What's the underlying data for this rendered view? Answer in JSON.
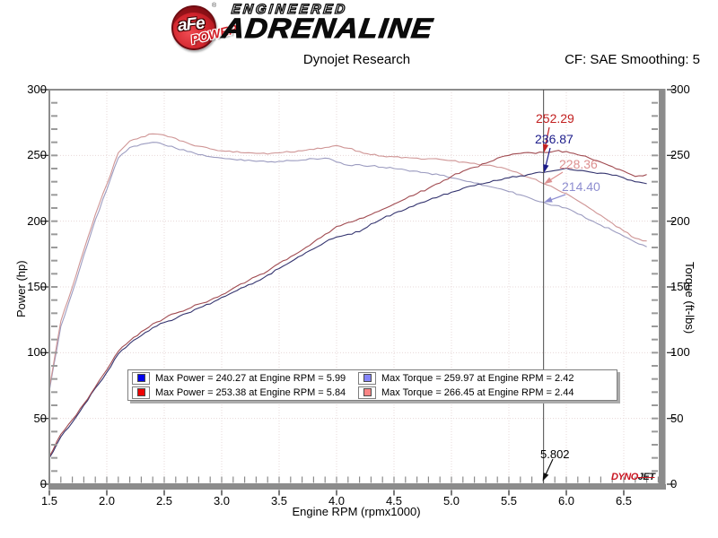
{
  "header": {
    "brand_circle": "aFe",
    "brand_reg": "®",
    "brand_power": "POWER",
    "brand_line1": "ENGINEERED",
    "brand_line2": "ADRENALINE",
    "title": "Dynojet Research",
    "correction": "CF: SAE Smoothing: 5"
  },
  "chart_data": {
    "type": "line",
    "title": "Dynojet Research",
    "xlabel": "Engine RPM (rpmx1000)",
    "ylabel_left": "Power (hp)",
    "ylabel_right": "Torque (ft-lbs)",
    "xlim": [
      1.5,
      6.8125
    ],
    "ylim_left": [
      0,
      300
    ],
    "ylim_right": [
      0,
      300
    ],
    "grid": "dotted, every 0.5 rpm and every 50 units",
    "x_tick_values": [
      1.5,
      2.0,
      2.5,
      3.0,
      3.5,
      4.0,
      4.5,
      5.0,
      5.5,
      6.0,
      6.5
    ],
    "x_tick_labels": [
      "1.5",
      "2.0",
      "2.5",
      "3.0",
      "3.5",
      "4.0",
      "4.5",
      "5.0",
      "5.5",
      "6.0",
      "6.5"
    ],
    "y_tick_values": [
      0,
      50,
      100,
      150,
      200,
      250,
      300
    ],
    "y_tick_labels": [
      "0",
      "50",
      "100",
      "150",
      "200",
      "250",
      "300"
    ],
    "x": [
      1.5,
      1.6,
      1.7,
      1.8,
      1.9,
      2.0,
      2.1,
      2.2,
      2.3,
      2.4,
      2.5,
      2.6,
      2.7,
      2.8,
      2.9,
      3.0,
      3.1,
      3.2,
      3.3,
      3.4,
      3.5,
      3.6,
      3.7,
      3.8,
      3.9,
      4.0,
      4.1,
      4.2,
      4.3,
      4.4,
      4.5,
      4.6,
      4.7,
      4.8,
      4.9,
      5.0,
      5.1,
      5.2,
      5.3,
      5.4,
      5.5,
      5.6,
      5.7,
      5.8,
      5.9,
      6.0,
      6.1,
      6.2,
      6.3,
      6.4,
      6.5,
      6.6,
      6.7
    ],
    "series": [
      {
        "name": "torque-blue",
        "axis": "torque",
        "color": "#9c9cc0",
        "max": 259.97,
        "max_at_rpm": 2.42,
        "values": [
          71,
          120,
          146,
          174,
          201,
          224,
          248,
          256,
          258.5,
          260,
          258,
          255.5,
          253,
          250.5,
          249,
          248,
          247,
          246,
          245.5,
          245,
          245.5,
          246,
          246.5,
          247.5,
          248,
          245,
          242.5,
          243,
          242,
          241,
          240,
          239,
          238,
          236.5,
          235,
          233,
          231,
          229,
          227,
          225,
          222.5,
          220,
          217,
          214.4,
          212,
          210,
          205.5,
          201,
          197,
          193,
          188.5,
          184,
          180.5
        ]
      },
      {
        "name": "torque-red",
        "axis": "torque",
        "color": "#cf9595",
        "max": 266.45,
        "max_at_rpm": 2.44,
        "values": [
          73,
          124,
          150,
          178,
          205,
          228,
          252,
          261,
          264,
          266.4,
          265.5,
          263,
          259.5,
          257,
          255,
          253.5,
          252.5,
          252,
          251.5,
          251,
          252,
          252.5,
          253.5,
          254.5,
          256,
          257.5,
          255.5,
          253,
          250.5,
          249.5,
          249,
          248.5,
          248,
          247.5,
          247,
          246,
          245,
          244,
          242.5,
          241,
          239,
          236,
          232.5,
          228.6,
          225,
          221,
          215.5,
          210,
          204.5,
          198.5,
          192.5,
          187,
          185
        ]
      },
      {
        "name": "power-blue",
        "axis": "power",
        "color": "#34346f",
        "max": 240.27,
        "max_at_rpm": 5.99,
        "values": [
          20,
          36,
          47,
          60,
          73,
          85,
          99,
          107,
          113,
          119,
          123,
          126,
          130,
          134,
          137,
          142,
          146,
          150,
          154,
          159,
          164,
          169,
          174,
          179,
          184,
          188,
          190,
          192,
          198,
          202,
          206,
          209,
          213,
          216,
          219,
          222,
          225,
          227,
          229,
          231,
          233,
          234.5,
          236,
          236.9,
          238.5,
          240.3,
          238.5,
          237.5,
          236.5,
          235,
          233,
          230,
          228.5
        ]
      },
      {
        "name": "power-red",
        "axis": "power",
        "color": "#a04a50",
        "max": 253.38,
        "max_at_rpm": 5.84,
        "values": [
          21,
          38,
          49,
          61,
          74,
          87,
          101,
          109,
          116,
          122,
          126,
          130,
          133,
          137,
          140,
          144,
          149,
          153,
          158,
          162,
          168,
          173,
          178,
          184,
          190,
          196,
          199,
          202,
          205,
          209,
          213,
          217,
          221,
          225,
          229,
          234,
          238,
          241,
          244,
          248,
          250,
          251.5,
          252,
          252.3,
          253.3,
          253,
          250.5,
          248,
          245,
          241.5,
          238,
          234,
          235.5
        ]
      }
    ],
    "cursor": {
      "rpm": 5.802,
      "rpm_label": "5.802",
      "points": [
        {
          "series": "power-red",
          "value": 252.29,
          "text": "252.29",
          "color": "#c22020"
        },
        {
          "series": "power-blue",
          "value": 236.87,
          "text": "236.87",
          "color": "#1c1c8a"
        },
        {
          "series": "torque-red",
          "value": 228.36,
          "text": "228.36",
          "color": "#dd9090"
        },
        {
          "series": "torque-blue",
          "value": 214.4,
          "text": "214.40",
          "color": "#8d8dd0"
        }
      ]
    }
  },
  "legend": {
    "entries": [
      {
        "swatch": "#0202ee",
        "text": "Max Power = 240.27 at Engine RPM = 5.99"
      },
      {
        "swatch": "#ee0202",
        "text": "Max Power = 253.38 at Engine RPM = 5.84"
      },
      {
        "swatch": "#8585fa",
        "text": "Max Torque = 259.97 at Engine RPM = 2.42"
      },
      {
        "swatch": "#fa8585",
        "text": "Max Torque = 266.45 at Engine RPM = 2.44"
      }
    ]
  },
  "footer_logo": {
    "part1": "DYNO",
    "part2": "JET"
  }
}
